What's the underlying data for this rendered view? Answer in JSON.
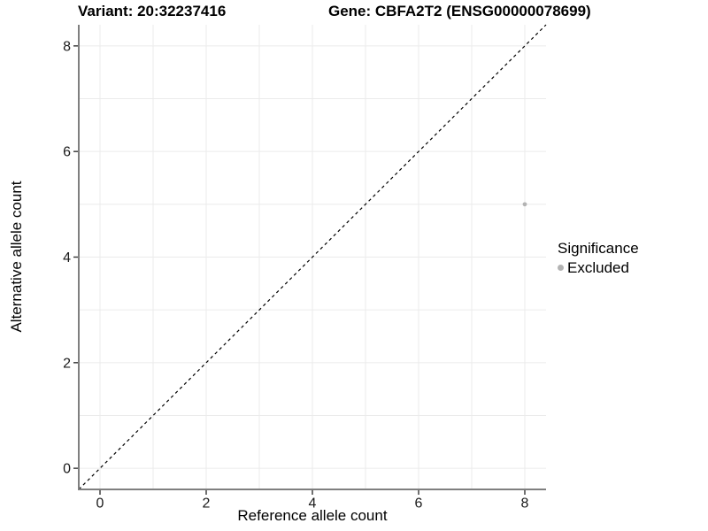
{
  "chart_data": {
    "type": "scatter",
    "title_left": "Variant: 20:32237416",
    "title_right": "Gene: CBFA2T2 (ENSG00000078699)",
    "xlabel": "Reference allele count",
    "ylabel": "Alternative allele count",
    "xlim": [
      -0.4,
      8.4
    ],
    "ylim": [
      -0.4,
      8.4
    ],
    "xticks": [
      0,
      2,
      4,
      6,
      8
    ],
    "yticks": [
      0,
      2,
      4,
      6,
      8
    ],
    "grid": "gridlines at every integer 0-8 on both axes, uniform weight",
    "reference_line": {
      "type": "identity-diagonal",
      "style": "dashed",
      "color": "#000000"
    },
    "points": [
      {
        "x": 8,
        "y": 5,
        "significance": "Excluded",
        "color": "#b3b3b3"
      }
    ],
    "legend": {
      "title": "Significance",
      "position": "right",
      "items": [
        {
          "label": "Excluded",
          "marker": "circle",
          "color": "#b3b3b3"
        }
      ]
    },
    "colors": {
      "background": "#ffffff",
      "grid": "#ebebeb",
      "axis_line": "#7f7f7f",
      "tick": "#333333",
      "tick_label": "#1a1a1a",
      "text": "#000000"
    }
  }
}
